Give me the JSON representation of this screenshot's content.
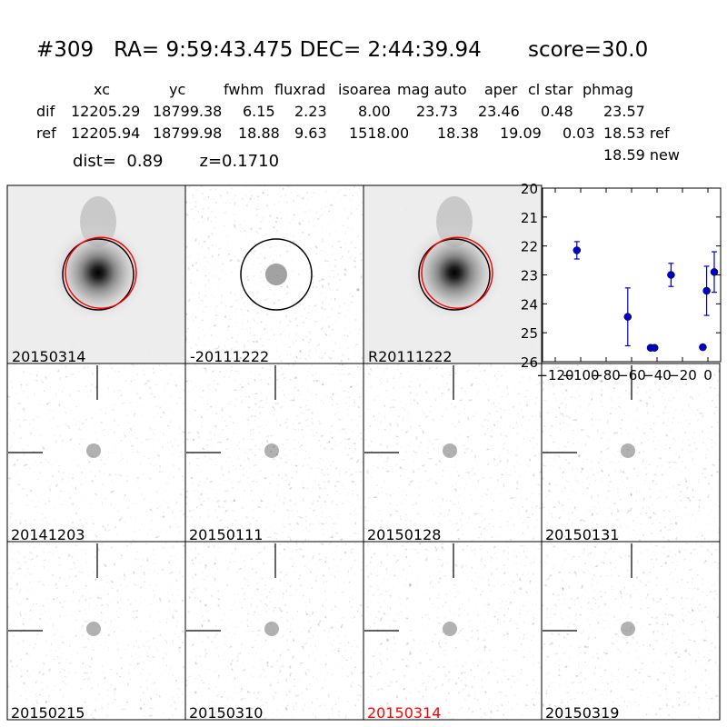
{
  "header": {
    "title": "#309   RA= 9:59:43.475 DEC= 2:44:39.94       score=30.0",
    "columns": [
      "xc",
      "yc",
      "fwhm",
      "fluxrad",
      "isoarea",
      "mag auto",
      "aper",
      "cl star",
      "phmag"
    ],
    "rows": [
      {
        "label": "dif",
        "values": [
          "12205.29",
          "18799.38",
          "6.15",
          "2.23",
          "8.00",
          "23.73",
          "23.46",
          "0.48",
          "23.57"
        ]
      },
      {
        "label": "ref",
        "values": [
          "12205.94",
          "18799.98",
          "18.88",
          "9.63",
          "1518.00",
          "18.38",
          "19.09",
          "0.03",
          "18.53 ref"
        ]
      }
    ],
    "extra_mag": "18.59 new",
    "dist_line": "dist=  0.89       z=0.1710"
  },
  "stamps_top": [
    {
      "label": "20150314",
      "kind": "galaxy",
      "circles": [
        "black",
        "red"
      ]
    },
    {
      "label": "-20111222",
      "kind": "noise",
      "circles": [
        "black"
      ]
    },
    {
      "label": "R20111222",
      "kind": "galaxy",
      "circles": [
        "black",
        "red"
      ]
    }
  ],
  "stamps_grid": [
    {
      "label": "20141203",
      "color": "#000000"
    },
    {
      "label": "20150111",
      "color": "#000000"
    },
    {
      "label": "20150128",
      "color": "#000000"
    },
    {
      "label": "20150131",
      "color": "#000000"
    },
    {
      "label": "20150215",
      "color": "#000000"
    },
    {
      "label": "20150310",
      "color": "#000000"
    },
    {
      "label": "20150314",
      "color": "#ff0000"
    },
    {
      "label": "20150319",
      "color": "#000000"
    }
  ],
  "chart_data": {
    "type": "scatter",
    "title": "",
    "xlabel": "",
    "ylabel": "",
    "xlim": [
      -130,
      10
    ],
    "ylim": [
      26,
      20
    ],
    "y_inverted": true,
    "x_ticks": [
      -120,
      -100,
      -80,
      -60,
      -40,
      -20,
      0
    ],
    "x_tick_labels": [
      "−120",
      "−100",
      "−80",
      "−60",
      "−40",
      "−20",
      "0"
    ],
    "y_ticks": [
      20,
      21,
      22,
      23,
      24,
      25,
      26
    ],
    "points": [
      {
        "x": -103,
        "y": 22.15,
        "err": 0.3
      },
      {
        "x": -63,
        "y": 24.45,
        "err": 1.0
      },
      {
        "x": -45,
        "y": 25.52,
        "err": 0.08
      },
      {
        "x": -42,
        "y": 25.52,
        "err": 0.08
      },
      {
        "x": -29,
        "y": 23.0,
        "err": 0.4
      },
      {
        "x": -4,
        "y": 25.5,
        "err": 0.08
      },
      {
        "x": -1,
        "y": 23.55,
        "err": 0.85
      },
      {
        "x": 5,
        "y": 22.9,
        "err": 0.7
      }
    ],
    "marker_color": "#0000cc"
  }
}
